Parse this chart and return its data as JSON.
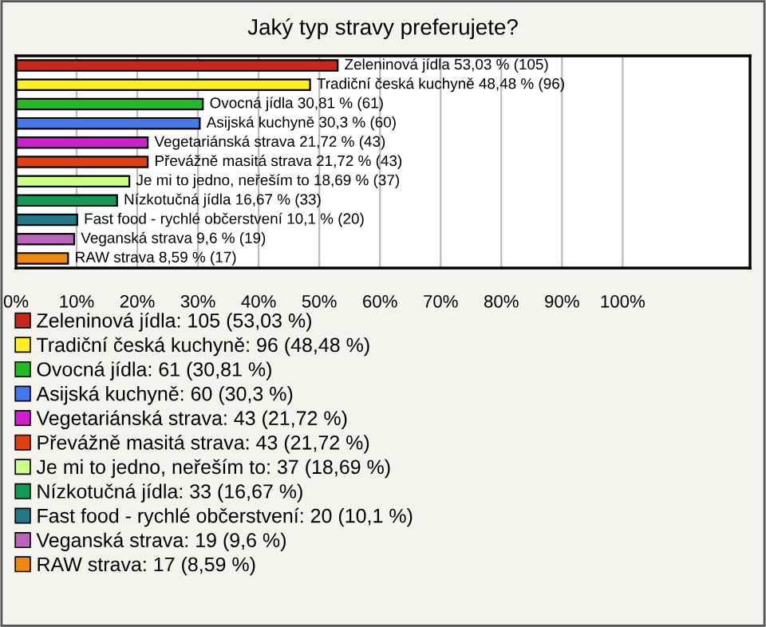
{
  "chart_data": {
    "type": "bar",
    "orientation": "horizontal",
    "title": "Jaký typ stravy preferujete?",
    "categories": [
      null,
      null,
      null,
      null,
      null,
      null,
      null,
      null,
      null,
      null,
      null
    ],
    "series": [
      {
        "name": "Zeleninová jídla: 105 (53,03 %)",
        "color": "#c8281c",
        "values": [
          53.03,
          null,
          null,
          null,
          null,
          null,
          null,
          null,
          null,
          null,
          null
        ],
        "value_labels": [
          "Zeleninová jídla 53,03 % (105)",
          null,
          null,
          null,
          null,
          null,
          null,
          null,
          null,
          null,
          null
        ]
      },
      {
        "name": "Tradiční česká kuchyně: 96 (48,48 %)",
        "color": "#ffee22",
        "values": [
          null,
          48.48,
          null,
          null,
          null,
          null,
          null,
          null,
          null,
          null,
          null
        ],
        "value_labels": [
          null,
          "Tradiční česká kuchyně 48,48 % (96)",
          null,
          null,
          null,
          null,
          null,
          null,
          null,
          null,
          null
        ]
      },
      {
        "name": "Ovocná jídla: 61 (30,81 %)",
        "color": "#22bb22",
        "values": [
          null,
          null,
          30.81,
          null,
          null,
          null,
          null,
          null,
          null,
          null,
          null
        ],
        "value_labels": [
          null,
          null,
          "Ovocná jídla 30,81 % (61)",
          null,
          null,
          null,
          null,
          null,
          null,
          null,
          null
        ]
      },
      {
        "name": "Asijská kuchyně: 60 (30,3 %)",
        "color": "#4477ee",
        "values": [
          null,
          null,
          null,
          30.3,
          null,
          null,
          null,
          null,
          null,
          null,
          null
        ],
        "value_labels": [
          null,
          null,
          null,
          "Asijská kuchyně 30,3 % (60)",
          null,
          null,
          null,
          null,
          null,
          null,
          null
        ]
      },
      {
        "name": "Vegetariánská strava: 43 (21,72 %)",
        "color": "#cc22cc",
        "values": [
          null,
          null,
          null,
          null,
          21.72,
          null,
          null,
          null,
          null,
          null,
          null
        ],
        "value_labels": [
          null,
          null,
          null,
          null,
          "Vegetariánská strava 21,72 % (43)",
          null,
          null,
          null,
          null,
          null,
          null
        ]
      },
      {
        "name": "Převážně masitá strava: 43 (21,72 %)",
        "color": "#e04010",
        "values": [
          null,
          null,
          null,
          null,
          null,
          21.72,
          null,
          null,
          null,
          null,
          null
        ],
        "value_labels": [
          null,
          null,
          null,
          null,
          null,
          "Převážně masitá strava 21,72 % (43)",
          null,
          null,
          null,
          null,
          null
        ]
      },
      {
        "name": "Je mi to jedno, neřeším to: 37 (18,69 %)",
        "color": "#ccff88",
        "values": [
          null,
          null,
          null,
          null,
          null,
          null,
          18.69,
          null,
          null,
          null,
          null
        ],
        "value_labels": [
          null,
          null,
          null,
          null,
          null,
          null,
          "Je mi to jedno, neřeším to 18,69 % (37)",
          null,
          null,
          null,
          null
        ]
      },
      {
        "name": "Nízkotučná jídla: 33 (16,67 %)",
        "color": "#119955",
        "values": [
          null,
          null,
          null,
          null,
          null,
          null,
          null,
          16.67,
          null,
          null,
          null
        ],
        "value_labels": [
          null,
          null,
          null,
          null,
          null,
          null,
          null,
          "Nízkotučná jídla 16,67 % (33)",
          null,
          null,
          null
        ]
      },
      {
        "name": "Fast food - rychlé občerstvení: 20 (10,1 %)",
        "color": "#227788",
        "values": [
          null,
          null,
          null,
          null,
          null,
          null,
          null,
          null,
          10.1,
          null,
          null
        ],
        "value_labels": [
          null,
          null,
          null,
          null,
          null,
          null,
          null,
          null,
          "Fast food - rychlé občerstvení 10,1 % (20)",
          null,
          null
        ]
      },
      {
        "name": "Veganská strava: 19 (9,6 %)",
        "color": "#bb66bb",
        "values": [
          null,
          null,
          null,
          null,
          null,
          null,
          null,
          null,
          null,
          9.6,
          null
        ],
        "value_labels": [
          null,
          null,
          null,
          null,
          null,
          null,
          null,
          null,
          null,
          "Veganská strava 9,6 % (19)",
          null
        ]
      },
      {
        "name": "RAW strava: 17 (8,59 %)",
        "color": "#ee8811",
        "values": [
          null,
          null,
          null,
          null,
          null,
          null,
          null,
          null,
          null,
          null,
          8.59
        ],
        "value_labels": [
          null,
          null,
          null,
          null,
          null,
          null,
          null,
          null,
          null,
          null,
          "RAW strava 8,59 % (17)"
        ]
      }
    ],
    "xlim": [
      0,
      121
    ],
    "xticks": [
      {
        "value": 0,
        "label": "0%"
      },
      {
        "value": 10,
        "label": "10%"
      },
      {
        "value": 20,
        "label": "20%"
      },
      {
        "value": 30,
        "label": "30%"
      },
      {
        "value": 40,
        "label": "40%"
      },
      {
        "value": 50,
        "label": "50%"
      },
      {
        "value": 60,
        "label": "60%"
      },
      {
        "value": 70,
        "label": "70%"
      },
      {
        "value": 80,
        "label": "80%"
      },
      {
        "value": 90,
        "label": "90%"
      },
      {
        "value": 100,
        "label": "100%"
      }
    ],
    "grid": "x",
    "legend": "bottom",
    "tick_labels": "x"
  }
}
